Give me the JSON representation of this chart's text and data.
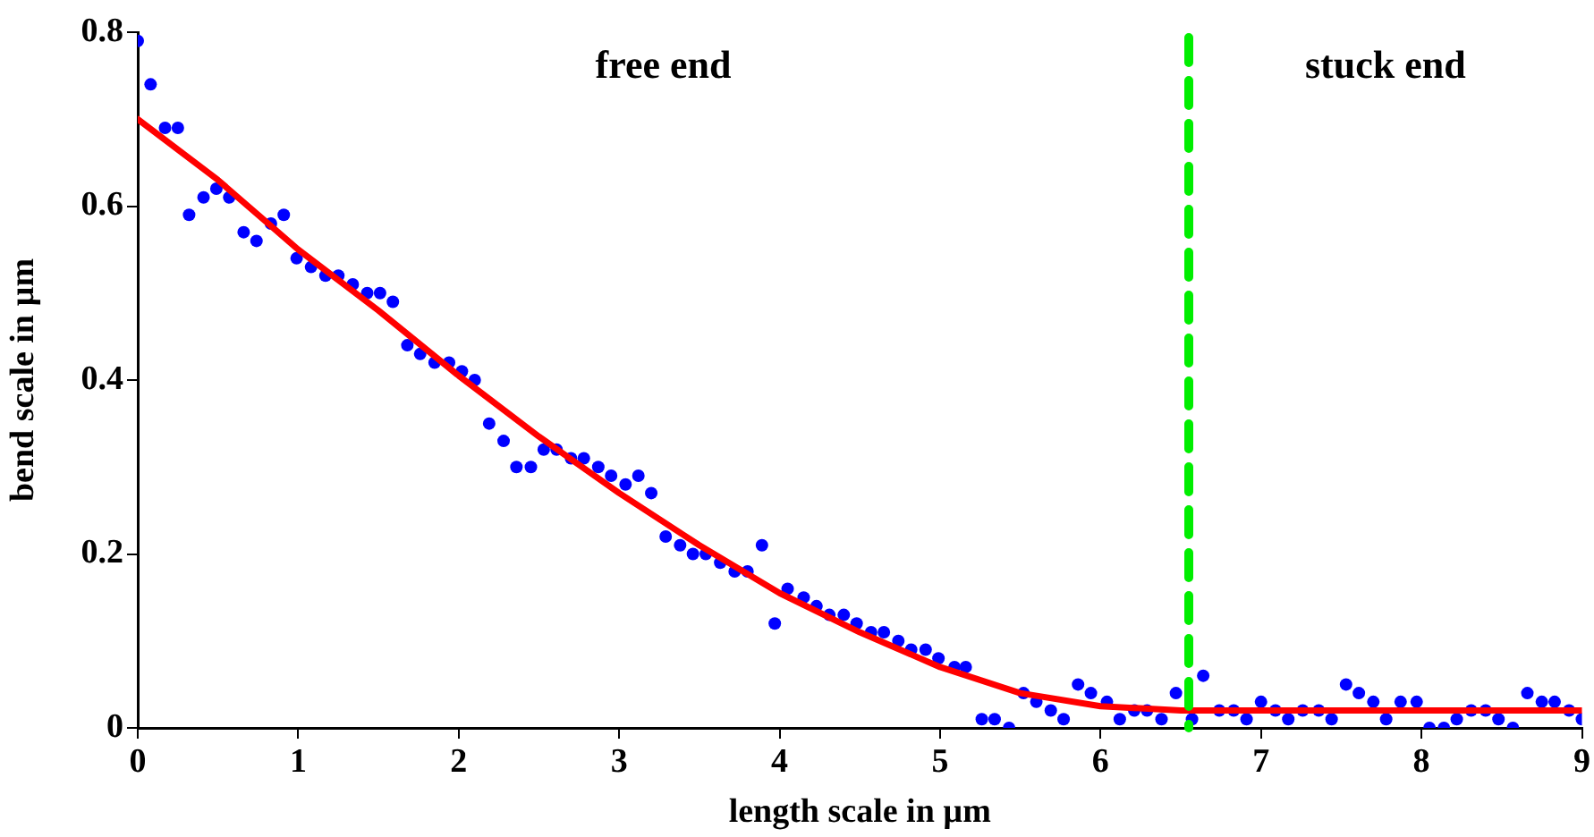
{
  "chart_data": {
    "type": "scatter",
    "xlabel": "length scale in µm",
    "ylabel": "bend scale in µm",
    "xlim": [
      0,
      9
    ],
    "xticks": [
      0,
      1,
      2,
      3,
      4,
      5,
      6,
      7,
      8,
      9
    ],
    "ylim": [
      0,
      0.8
    ],
    "yticks": [
      0,
      0.2,
      0.4,
      0.6,
      0.8
    ],
    "grid": false,
    "legend": false,
    "series": [
      {
        "color": "#0000ff",
        "marker": "circle",
        "x": [
          0,
          0.08,
          0.17,
          0.25,
          0.32,
          0.41,
          0.49,
          0.57,
          0.66,
          0.74,
          0.83,
          0.91,
          0.99,
          1.08,
          1.17,
          1.25,
          1.34,
          1.43,
          1.51,
          1.59,
          1.68,
          1.76,
          1.85,
          1.94,
          2.02,
          2.1,
          2.19,
          2.28,
          2.36,
          2.45,
          2.53,
          2.61,
          2.7,
          2.78,
          2.87,
          2.95,
          3.04,
          3.12,
          3.2,
          3.29,
          3.38,
          3.46,
          3.54,
          3.63,
          3.72,
          3.8,
          3.89,
          3.97,
          4.05,
          4.15,
          4.23,
          4.31,
          4.4,
          4.48,
          4.57,
          4.65,
          4.74,
          4.82,
          4.91,
          4.99,
          5.09,
          5.16,
          5.26,
          5.34,
          5.43,
          5.52,
          5.6,
          5.69,
          5.77,
          5.86,
          5.94,
          6.04,
          6.12,
          6.21,
          6.29,
          6.38,
          6.47,
          6.57,
          6.64,
          6.74,
          6.83,
          6.91,
          7,
          7.09,
          7.17,
          7.26,
          7.36,
          7.44,
          7.53,
          7.61,
          7.7,
          7.78,
          7.87,
          7.97,
          8.05,
          8.14,
          8.22,
          8.31,
          8.4,
          8.48,
          8.57,
          8.66,
          8.75,
          8.83,
          8.92,
          9
        ],
        "values": [
          0.79,
          0.74,
          0.69,
          0.69,
          0.59,
          0.61,
          0.62,
          0.61,
          0.57,
          0.56,
          0.58,
          0.59,
          0.54,
          0.53,
          0.52,
          0.52,
          0.51,
          0.5,
          0.5,
          0.49,
          0.44,
          0.43,
          0.42,
          0.42,
          0.41,
          0.4,
          0.35,
          0.33,
          0.3,
          0.3,
          0.32,
          0.32,
          0.31,
          0.31,
          0.3,
          0.29,
          0.28,
          0.29,
          0.27,
          0.22,
          0.21,
          0.2,
          0.2,
          0.19,
          0.18,
          0.18,
          0.21,
          0.12,
          0.16,
          0.15,
          0.14,
          0.13,
          0.13,
          0.12,
          0.11,
          0.11,
          0.1,
          0.09,
          0.09,
          0.08,
          0.07,
          0.07,
          0.01,
          0.01,
          0,
          0.04,
          0.03,
          0.02,
          0.01,
          0.05,
          0.04,
          0.03,
          0.01,
          0.02,
          0.02,
          0.01,
          0.04,
          0.01,
          0.06,
          0.02,
          0.02,
          0.01,
          0.03,
          0.02,
          0.01,
          0.02,
          0.02,
          0.01,
          0.05,
          0.04,
          0.03,
          0.01,
          0.03,
          0.03,
          0,
          0,
          0.01,
          0.02,
          0.02,
          0.01,
          0,
          0.04,
          0.03,
          0.03,
          0.02,
          0.01
        ]
      },
      {
        "type": "line",
        "color": "#ff0000",
        "x": [
          0,
          0.5,
          1,
          1.5,
          2,
          2.5,
          3,
          3.5,
          4,
          4.5,
          5,
          5.5,
          6,
          6.5,
          7,
          8,
          9
        ],
        "values": [
          0.7,
          0.63,
          0.55,
          0.48,
          0.405,
          0.335,
          0.27,
          0.21,
          0.155,
          0.11,
          0.07,
          0.04,
          0.025,
          0.02,
          0.02,
          0.02,
          0.02
        ]
      }
    ],
    "ref_lines": [
      {
        "axis": "x",
        "value": 6.55,
        "color": "#00ee00",
        "line_style": "dashed"
      }
    ],
    "annotations": [
      "free end",
      "stuck end"
    ]
  }
}
